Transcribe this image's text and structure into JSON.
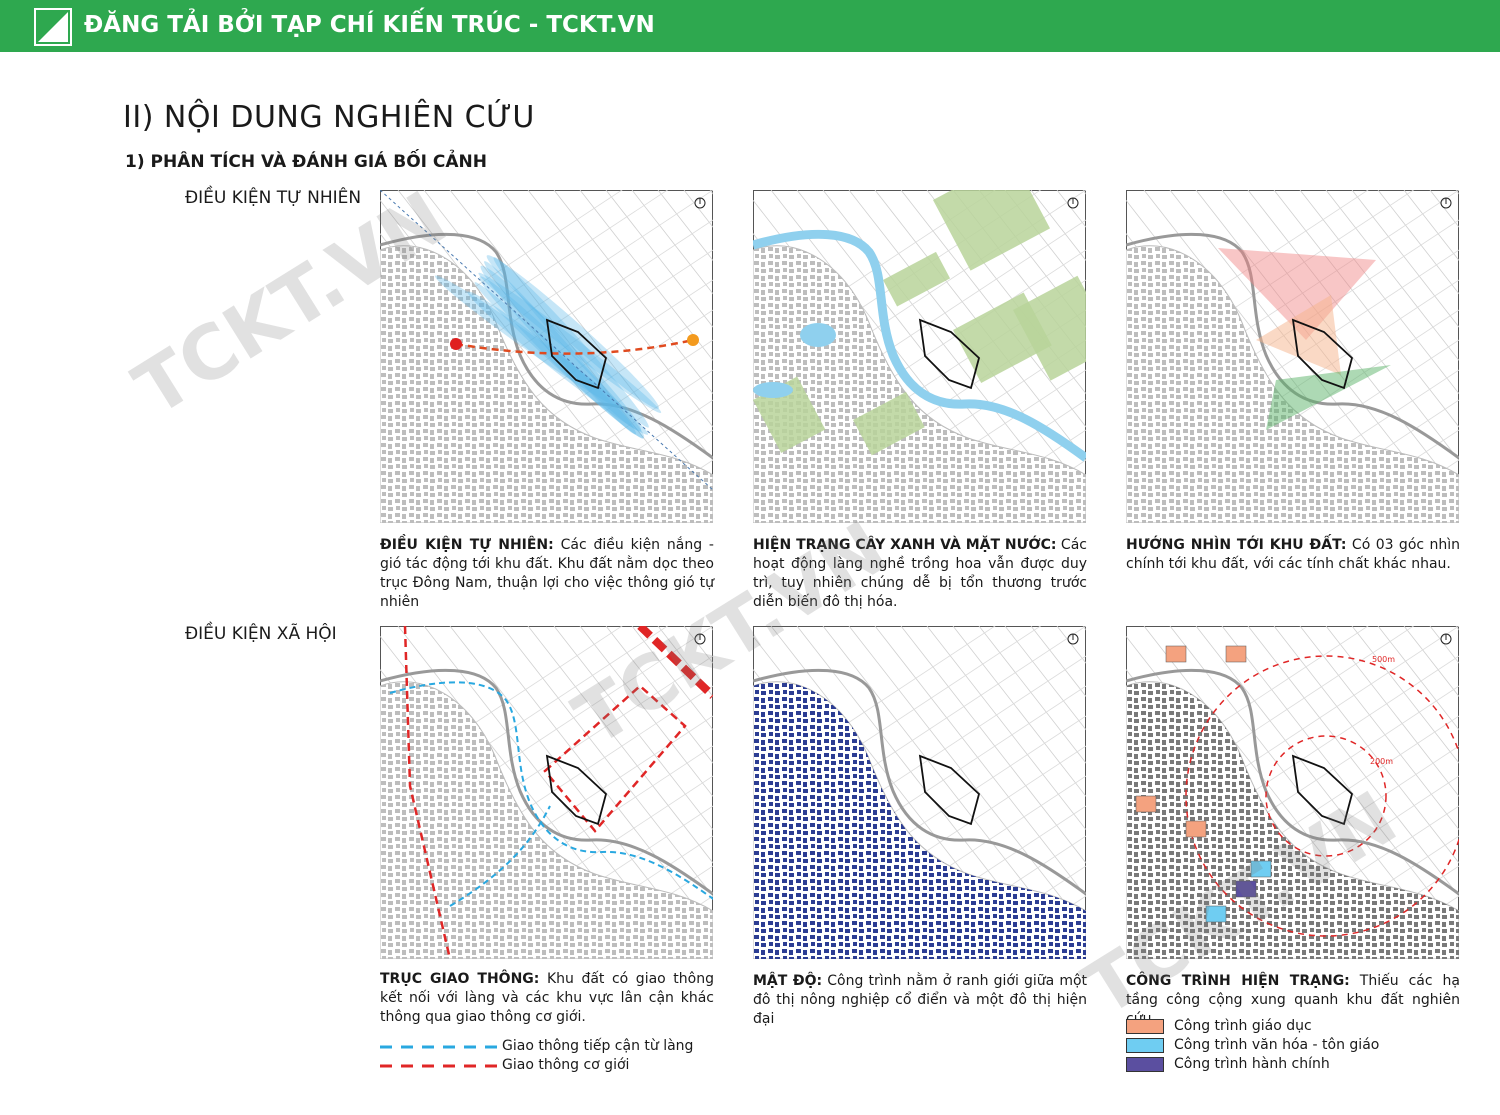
{
  "header": {
    "title": "ĐĂNG TẢI BỞI TẠP CHÍ KIẾN TRÚC - TCKT.VN"
  },
  "watermark": "TCKT.VN",
  "title": "II) NỘI DUNG NGHIÊN CỨU",
  "subtitle": "1) PHÂN TÍCH VÀ ĐÁNH GIÁ BỐI CẢNH",
  "sections": [
    {
      "label": "ĐIỀU KIỆN TỰ NHIÊN",
      "panels": [
        {
          "heading": "ĐIỀU KIỆN TỰ NHIÊN:",
          "text": "Các điều kiện nắng - gió tác động tới khu đất. Khu đất nằm dọc theo trục Đông Nam, thuận lợi cho việc thông gió tự nhiên"
        },
        {
          "heading": "HIỆN TRẠNG CÂY XANH VÀ MẶT NƯỚC:",
          "text": "Các hoạt động làng nghề trồng hoa vẫn được duy trì, tuy nhiên chúng dễ bị tổn thương trước diễn biến đô thị hóa."
        },
        {
          "heading": "HƯỚNG NHÌN TỚI KHU ĐẤT:",
          "text": "Có 03 góc nhìn chính tới khu đất, với các tính chất khác nhau."
        }
      ]
    },
    {
      "label": "ĐIỀU KIỆN XÃ HỘI",
      "panels": [
        {
          "heading": "TRỤC GIAO THÔNG:",
          "text": "Khu đất có giao thông kết nối với làng và các khu vực lân cận khác thông qua giao thông cơ giới.",
          "legend": [
            "Giao thông tiếp cận từ làng",
            "Giao thông cơ giới"
          ]
        },
        {
          "heading": "MẬT ĐỘ:",
          "text": "Công trình nằm ở ranh giới giữa một đô thị nông nghiệp cổ điển và một đô thị hiện đại"
        },
        {
          "heading": "CÔNG TRÌNH HIỆN TRẠNG:",
          "text": "Thiếu các hạ tầng công cộng xung quanh khu đất nghiên cứu",
          "map_labels": [
            "500m",
            "200m"
          ],
          "legend": [
            "Công trình giáo dục",
            "Công trình văn hóa - tôn giáo",
            "Công trình hành chính"
          ]
        }
      ]
    }
  ]
}
